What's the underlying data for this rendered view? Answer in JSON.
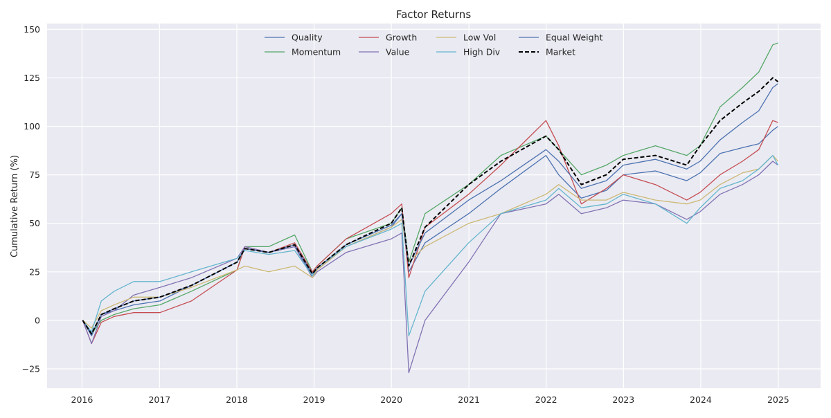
{
  "chart_data": {
    "type": "line",
    "title": "Factor Returns",
    "xlabel": "",
    "ylabel": "Cumulative Return (%)",
    "xlim": [
      "2015-07-20",
      "2025-07-20"
    ],
    "ylim": [
      -35,
      153
    ],
    "x_ticks": [
      "2016",
      "2017",
      "2018",
      "2019",
      "2020",
      "2021",
      "2022",
      "2023",
      "2024",
      "2025"
    ],
    "y_ticks": [
      -25,
      0,
      25,
      50,
      75,
      100,
      125,
      150
    ],
    "grid": true,
    "legend": {
      "position": "top-center",
      "columns": 4
    },
    "x": [
      "2016-01-04",
      "2016-02-15",
      "2016-04-01",
      "2016-06-01",
      "2016-09-01",
      "2017-01-03",
      "2017-06-01",
      "2018-01-02",
      "2018-02-08",
      "2018-06-01",
      "2018-10-01",
      "2018-12-24",
      "2019-01-15",
      "2019-06-01",
      "2019-12-31",
      "2020-02-19",
      "2020-03-23",
      "2020-06-08",
      "2020-12-31",
      "2021-06-01",
      "2021-12-31",
      "2022-03-01",
      "2022-06-16",
      "2022-10-12",
      "2022-12-31",
      "2023-06-01",
      "2023-10-27",
      "2023-12-29",
      "2024-04-01",
      "2024-07-16",
      "2024-10-01",
      "2024-12-06",
      "2024-12-31"
    ],
    "series": [
      {
        "name": "Quality",
        "color": "#4c72b0",
        "dash": false,
        "values": [
          0,
          -8,
          3,
          5,
          8,
          10,
          18,
          30,
          37,
          35,
          38,
          23,
          26,
          38,
          48,
          55,
          25,
          40,
          55,
          68,
          85,
          75,
          63,
          67,
          75,
          77,
          72,
          76,
          86,
          89,
          91,
          98,
          100
        ]
      },
      {
        "name": "Momentum",
        "color": "#55a868",
        "dash": false,
        "values": [
          0,
          -7,
          0,
          3,
          6,
          8,
          15,
          26,
          38,
          38,
          44,
          25,
          28,
          42,
          50,
          58,
          30,
          55,
          70,
          85,
          95,
          88,
          75,
          80,
          85,
          90,
          85,
          90,
          110,
          120,
          128,
          142,
          143
        ]
      },
      {
        "name": "Growth",
        "color": "#c44e52",
        "dash": false,
        "values": [
          0,
          -12,
          -1,
          2,
          4,
          4,
          10,
          26,
          38,
          35,
          40,
          25,
          28,
          42,
          55,
          60,
          22,
          48,
          65,
          80,
          103,
          90,
          60,
          68,
          75,
          70,
          62,
          66,
          75,
          82,
          88,
          103,
          102
        ]
      },
      {
        "name": "Value",
        "color": "#8172b3",
        "dash": false,
        "values": [
          0,
          -12,
          2,
          5,
          13,
          17,
          22,
          32,
          38,
          35,
          38,
          22,
          25,
          35,
          42,
          45,
          -27,
          0,
          30,
          55,
          60,
          65,
          55,
          58,
          62,
          60,
          52,
          56,
          65,
          70,
          75,
          82,
          80
        ]
      },
      {
        "name": "Low Vol",
        "color": "#ccb974",
        "dash": false,
        "values": [
          0,
          -4,
          5,
          8,
          12,
          12,
          17,
          26,
          28,
          25,
          28,
          22,
          26,
          38,
          48,
          52,
          30,
          38,
          50,
          55,
          65,
          70,
          62,
          62,
          66,
          62,
          60,
          62,
          70,
          76,
          78,
          85,
          82
        ]
      },
      {
        "name": "High Div",
        "color": "#64b5cd",
        "dash": false,
        "values": [
          0,
          -6,
          10,
          15,
          20,
          20,
          25,
          32,
          36,
          34,
          36,
          23,
          27,
          38,
          47,
          50,
          -8,
          15,
          40,
          55,
          62,
          68,
          58,
          60,
          65,
          60,
          50,
          58,
          68,
          72,
          78,
          85,
          80
        ]
      },
      {
        "name": "Equal Weight",
        "color": "#4c72b0",
        "dash": false,
        "values": [
          0,
          -7,
          3,
          6,
          10,
          12,
          18,
          30,
          37,
          35,
          39,
          24,
          27,
          39,
          49,
          55,
          28,
          45,
          62,
          72,
          88,
          82,
          68,
          72,
          80,
          83,
          78,
          82,
          93,
          102,
          108,
          120,
          122
        ]
      },
      {
        "name": "Market",
        "color": "#000000",
        "dash": true,
        "values": [
          0,
          -7,
          3,
          6,
          10,
          12,
          18,
          30,
          37,
          35,
          39,
          24,
          27,
          39,
          50,
          58,
          28,
          48,
          70,
          82,
          95,
          88,
          70,
          75,
          83,
          85,
          80,
          90,
          103,
          112,
          118,
          125,
          123
        ]
      }
    ]
  }
}
